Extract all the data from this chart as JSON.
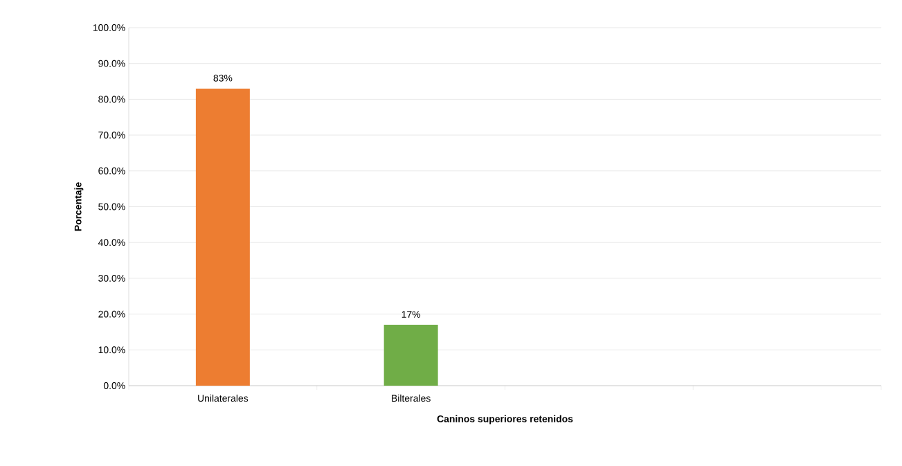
{
  "chart_data": {
    "type": "bar",
    "xlabel": "Caninos superiores retenidos",
    "ylabel": "Porcentaje",
    "categories": [
      "Unilaterales",
      "Bilterales",
      null,
      null
    ],
    "values": [
      83,
      17,
      null,
      null
    ],
    "colors": [
      "#ed7d31",
      "#70ad47",
      null,
      null
    ],
    "value_labels": [
      "83%",
      "17%",
      null,
      null
    ],
    "ylim": [
      0,
      100
    ],
    "yticks": [
      {
        "value": 0,
        "label": "0.0%"
      },
      {
        "value": 10,
        "label": "10.0%"
      },
      {
        "value": 20,
        "label": "20.0%"
      },
      {
        "value": 30,
        "label": "30.0%"
      },
      {
        "value": 40,
        "label": "40.0%"
      },
      {
        "value": 50,
        "label": "50.0%"
      },
      {
        "value": 60,
        "label": "60.0%"
      },
      {
        "value": 70,
        "label": "70.0%"
      },
      {
        "value": 80,
        "label": "80.0%"
      },
      {
        "value": 90,
        "label": "90.0%"
      },
      {
        "value": 100,
        "label": "100.0%"
      }
    ],
    "grid": "y"
  }
}
